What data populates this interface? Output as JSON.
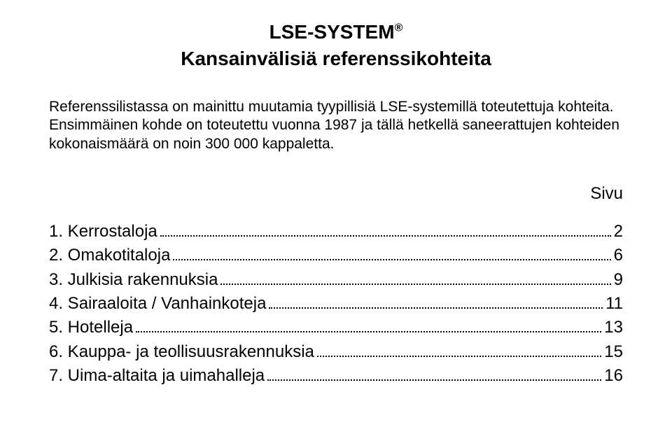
{
  "title_main": "LSE-SYSTEM",
  "title_reg": "®",
  "subtitle": "Kansainvälisiä referenssikohteita",
  "intro": "Referenssilistassa on mainittu muutamia tyypillisiä LSE-systemillä toteutettuja kohteita. Ensimmäinen kohde on toteutettu vuonna 1987 ja tällä hetkellä saneerattujen kohteiden kokonaismäärä on noin 300 000 kappaletta.",
  "toc_header": "Sivu",
  "toc": [
    {
      "label": "1. Kerrostaloja",
      "page": "2"
    },
    {
      "label": "2. Omakotitaloja",
      "page": "6"
    },
    {
      "label": "3. Julkisia rakennuksia",
      "page": "9"
    },
    {
      "label": "4. Sairaaloita / Vanhainkoteja",
      "page": "11"
    },
    {
      "label": "5. Hotelleja",
      "page": "13"
    },
    {
      "label": "6. Kauppa- ja teollisuusrakennuksia",
      "page": "15"
    },
    {
      "label": "7. Uima-altaita ja uimahalleja",
      "page": "16"
    }
  ],
  "colors": {
    "text": "#000000",
    "background": "#ffffff"
  },
  "typography": {
    "title_fontsize_pt": 21,
    "subtitle_fontsize_pt": 21,
    "body_fontsize_pt": 16,
    "toc_fontsize_pt": 18,
    "font_family": "Arial"
  }
}
